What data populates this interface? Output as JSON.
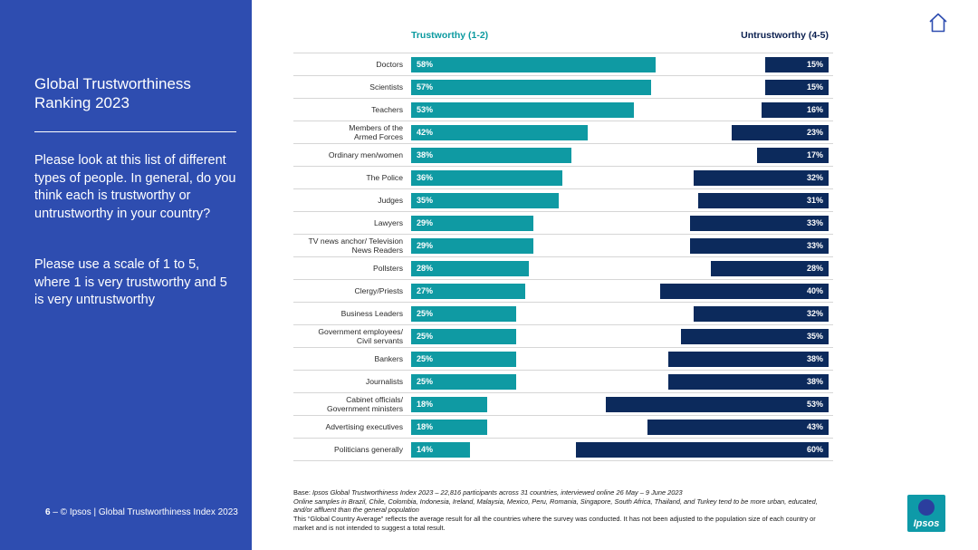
{
  "sidebar": {
    "title": "Global Trustworthiness Ranking 2023",
    "question": "Please look at this list of different types of people. In general, do you think each is trustworthy or untrustworthy in your country?",
    "scale_note": "Please use a scale of 1 to 5, where 1 is very trustworthy and 5 is very untrustworthy",
    "footer_page": "6",
    "footer_text": " – © Ipsos | Global Trustworthiness Index 2023"
  },
  "chart_data": {
    "type": "bar",
    "title": "Global Trustworthiness Ranking 2023",
    "series": [
      {
        "name": "Trustworthy (1-2)",
        "color": "#0f9aa3",
        "values": [
          58,
          57,
          53,
          42,
          38,
          36,
          35,
          29,
          29,
          28,
          27,
          25,
          25,
          25,
          25,
          18,
          18,
          14
        ]
      },
      {
        "name": "Untrustworthy (4-5)",
        "color": "#0c2a5c",
        "values": [
          15,
          15,
          16,
          23,
          17,
          32,
          31,
          33,
          33,
          28,
          40,
          32,
          35,
          38,
          38,
          53,
          43,
          60
        ]
      }
    ],
    "categories": [
      [
        "Doctors"
      ],
      [
        "Scientists"
      ],
      [
        "Teachers"
      ],
      [
        "Members of the",
        "Armed Forces"
      ],
      [
        "Ordinary men/women"
      ],
      [
        "The Police"
      ],
      [
        "Judges"
      ],
      [
        "Lawyers"
      ],
      [
        "TV news anchor/ Television",
        "News Readers"
      ],
      [
        "Pollsters"
      ],
      [
        "Clergy/Priests"
      ],
      [
        "Business Leaders"
      ],
      [
        "Government employees/",
        "Civil servants"
      ],
      [
        "Bankers"
      ],
      [
        "Journalists"
      ],
      [
        "Cabinet officials/",
        "Government ministers"
      ],
      [
        "Advertising executives"
      ],
      [
        "Politicians generally"
      ]
    ],
    "unit": "%",
    "xlim": [
      0,
      100
    ]
  },
  "notes": {
    "base_prefix": "Base: ",
    "base_text": "Ipsos Global Trustworthiness Index 2023 – 22,816 participants across 31 countries, interviewed online 26 May – 9 June 2023",
    "line2": "Online samples in Brazil, Chile, Colombia, Indonesia, Ireland, Malaysia, Mexico, Peru, Romania, Singapore, South Africa, Thailand, and Turkey tend to be more urban, educated, and/or affluent than the general population",
    "line3": "This “Global Country Average” reflects the average result for all the countries where the survey was conducted. It has not been adjusted to the population size of each country or market and is not intended to suggest a total result."
  },
  "brand": {
    "logo_text": "Ipsos",
    "home_icon": "home-icon"
  }
}
